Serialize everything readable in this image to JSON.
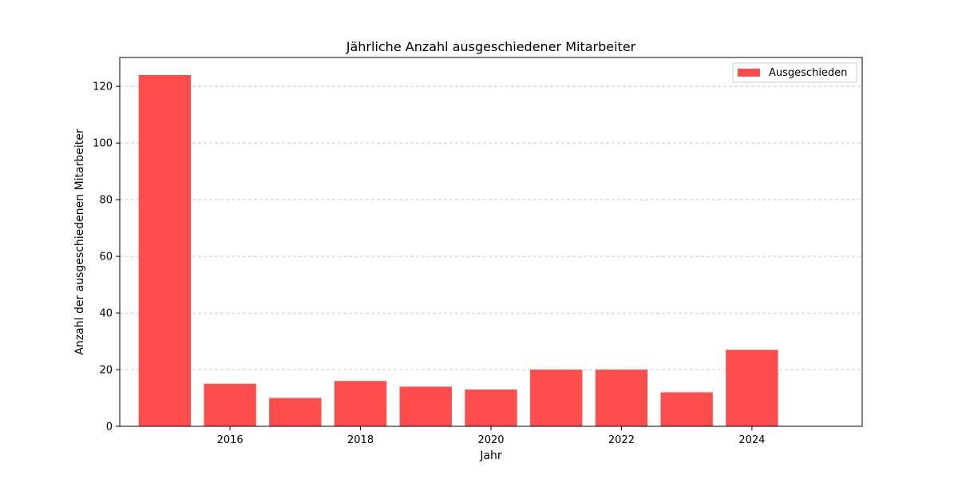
{
  "chart_data": {
    "type": "bar",
    "title": "Jährliche Anzahl ausgeschiedener Mitarbeiter",
    "xlabel": "Jahr",
    "ylabel": "Anzahl der ausgeschiedenen Mitarbeiter",
    "x": [
      2015,
      2016,
      2017,
      2018,
      2019,
      2020,
      2021,
      2022,
      2023,
      2024
    ],
    "series": [
      {
        "name": "Ausgeschieden",
        "values": [
          124,
          15,
          10,
          16,
          14,
          13,
          20,
          20,
          12,
          27
        ],
        "color": "#ff4d4d"
      }
    ],
    "xlim": [
      2014.31,
      2025.69
    ],
    "ylim": [
      0,
      130.2
    ],
    "xticks": [
      2016,
      2018,
      2020,
      2022,
      2024
    ],
    "yticks": [
      0,
      20,
      40,
      60,
      80,
      100,
      120
    ],
    "grid": "y, dashed",
    "legend_position": "top-right"
  }
}
